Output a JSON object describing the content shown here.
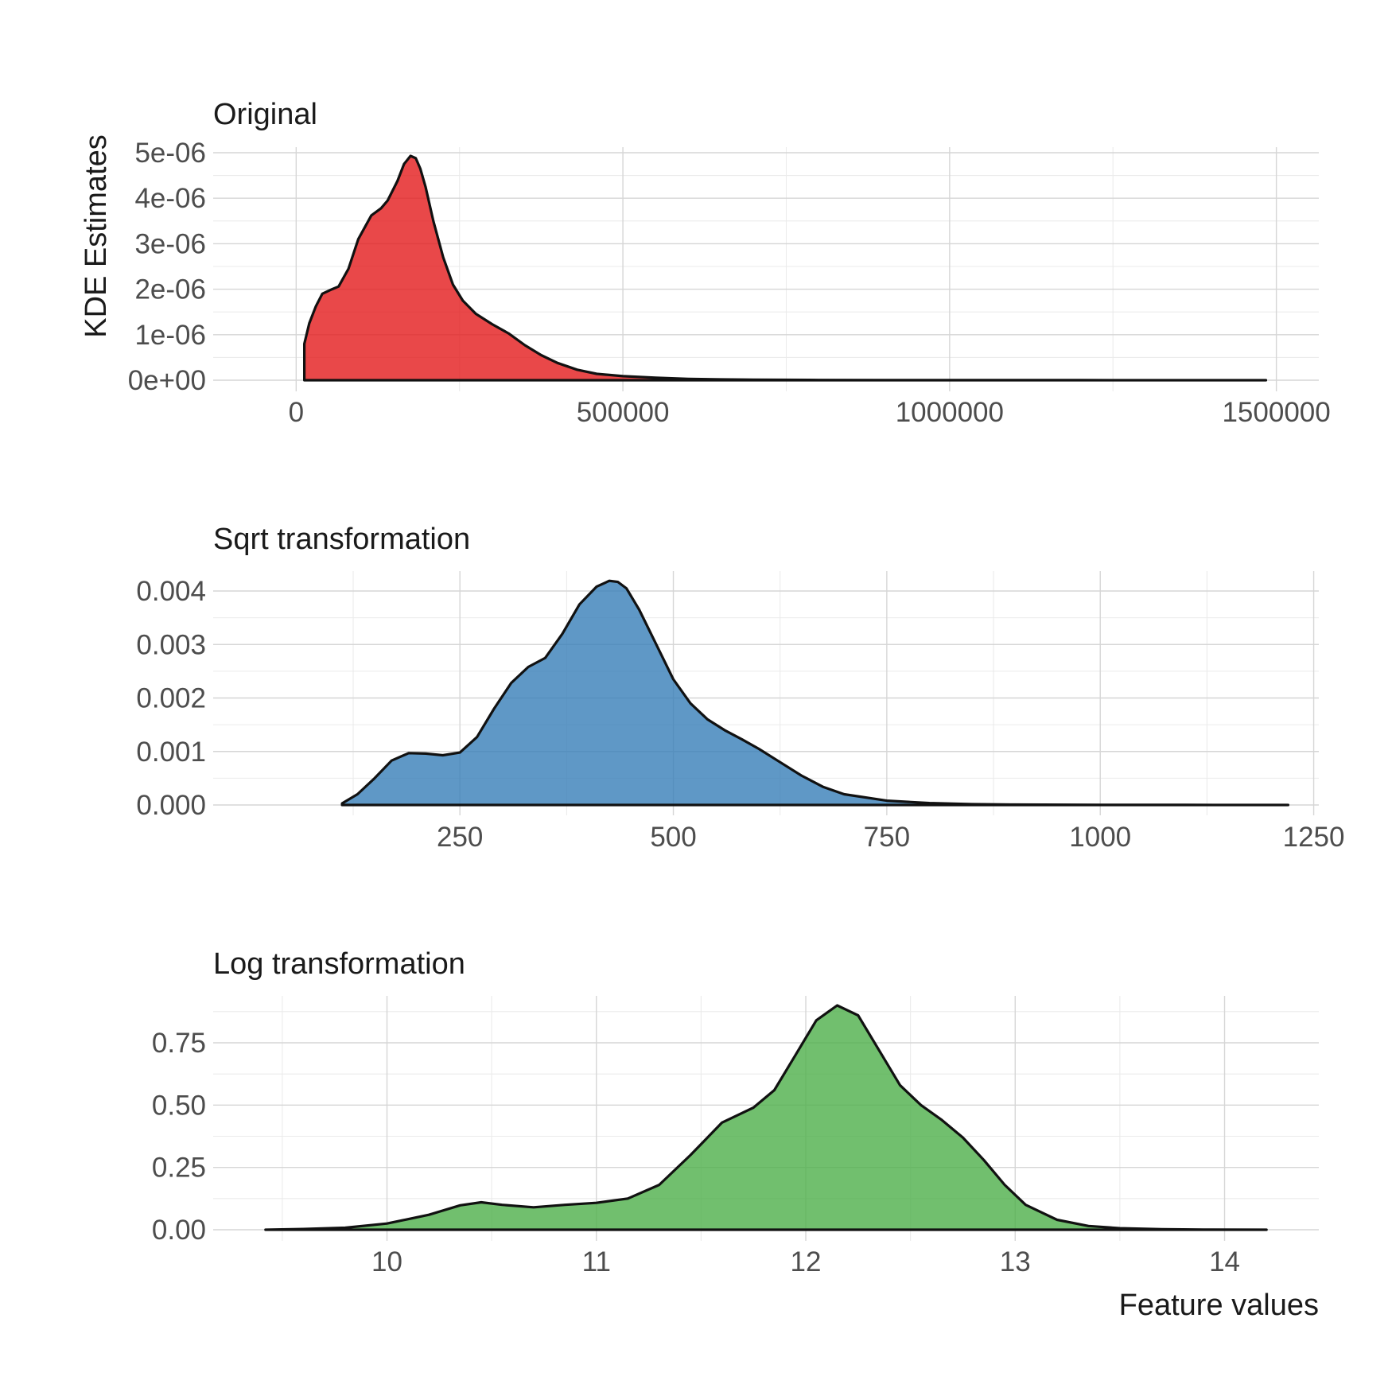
{
  "colors": {
    "original": "#e41a1c",
    "sqrt": "#377eb8",
    "log": "#4daf4a",
    "outline": "#111111"
  },
  "chart_data": [
    {
      "type": "area",
      "title": "Original",
      "ylabel": "KDE Estimates",
      "xlabel": "",
      "xlim": [
        -127000,
        1565000
      ],
      "ylim": [
        0,
        5e-06
      ],
      "xticks": [
        0,
        500000,
        1000000,
        1500000
      ],
      "xtick_labels": [
        "0",
        "500000",
        "1000000",
        "1500000"
      ],
      "xminor": [
        250000,
        750000,
        1250000
      ],
      "yticks": [
        0,
        1e-06,
        2e-06,
        3e-06,
        4e-06,
        5e-06
      ],
      "ytick_labels": [
        "0e+00",
        "1e-06",
        "2e-06",
        "3e-06",
        "4e-06",
        "5e-06"
      ],
      "series": [
        {
          "fill": "original",
          "x": [
            12500,
            12500,
            20000,
            30000,
            40000,
            55000,
            65000,
            80000,
            95000,
            115000,
            130000,
            140000,
            155000,
            165000,
            175000,
            183000,
            190000,
            198000,
            210000,
            225000,
            240000,
            255000,
            275000,
            300000,
            325000,
            350000,
            375000,
            400000,
            430000,
            460000,
            500000,
            550000,
            600000,
            650000,
            700000,
            800000,
            900000,
            1000000,
            1200000,
            1484000
          ],
          "y": [
            0,
            8e-07,
            1.25e-06,
            1.62e-06,
            1.9e-06,
            2e-06,
            2.06e-06,
            2.45e-06,
            3.1e-06,
            3.62e-06,
            3.78e-06,
            3.95e-06,
            4.38e-06,
            4.75e-06,
            4.93e-06,
            4.88e-06,
            4.65e-06,
            4.25e-06,
            3.5e-06,
            2.7e-06,
            2.1e-06,
            1.75e-06,
            1.46e-06,
            1.23e-06,
            1.03e-06,
            7.7e-07,
            5.5e-07,
            3.8e-07,
            2.3e-07,
            1.4e-07,
            9e-08,
            5.5e-08,
            3e-08,
            1.8e-08,
            1.2e-08,
            6e-09,
            3e-09,
            2e-09,
            1e-09,
            0.0
          ]
        }
      ]
    },
    {
      "type": "area",
      "title": "Sqrt transformation",
      "ylabel": "",
      "xlabel": "",
      "xlim": [
        -39,
        1256
      ],
      "ylim": [
        0,
        0.0042
      ],
      "xticks": [
        250,
        500,
        750,
        1000,
        1250
      ],
      "xtick_labels": [
        "250",
        "500",
        "750",
        "1000",
        "1250"
      ],
      "xminor": [
        125,
        375,
        625,
        875,
        1125
      ],
      "yticks": [
        0,
        0.001,
        0.002,
        0.003,
        0.004
      ],
      "ytick_labels": [
        "0.000",
        "0.001",
        "0.002",
        "0.003",
        "0.004"
      ],
      "series": [
        {
          "fill": "sqrt",
          "x": [
            112,
            130,
            150,
            170,
            190,
            210,
            230,
            250,
            270,
            290,
            310,
            330,
            350,
            370,
            390,
            410,
            425,
            435,
            445,
            460,
            480,
            500,
            520,
            540,
            560,
            580,
            600,
            625,
            650,
            675,
            700,
            750,
            800,
            850,
            900,
            1000,
            1100,
            1220
          ],
          "y": [
            3e-05,
            0.0002,
            0.0005,
            0.00083,
            0.00097,
            0.00096,
            0.00093,
            0.00098,
            0.00127,
            0.0018,
            0.00228,
            0.00258,
            0.00275,
            0.0032,
            0.00375,
            0.00408,
            0.00419,
            0.00417,
            0.00405,
            0.00365,
            0.003,
            0.00235,
            0.0019,
            0.0016,
            0.0014,
            0.00123,
            0.00105,
            0.0008,
            0.00055,
            0.00034,
            0.0002,
            8e-05,
            3.5e-05,
            1.5e-05,
            7e-06,
            2e-06,
            8e-07,
            0.0
          ]
        }
      ]
    },
    {
      "type": "area",
      "title": "Log transformation",
      "ylabel": "",
      "xlabel": "Feature values",
      "xlim": [
        9.17,
        14.45
      ],
      "ylim": [
        0,
        0.9
      ],
      "xticks": [
        10,
        11,
        12,
        13,
        14
      ],
      "xtick_labels": [
        "10",
        "11",
        "12",
        "13",
        "14"
      ],
      "xminor": [
        9.5,
        10.5,
        11.5,
        12.5,
        13.5
      ],
      "yticks": [
        0,
        0.25,
        0.5,
        0.75
      ],
      "ytick_labels": [
        "0.00",
        "0.25",
        "0.50",
        "0.75"
      ],
      "series": [
        {
          "fill": "log",
          "x": [
            9.42,
            9.6,
            9.8,
            10.0,
            10.2,
            10.35,
            10.45,
            10.55,
            10.7,
            10.85,
            11.0,
            11.15,
            11.3,
            11.45,
            11.6,
            11.75,
            11.85,
            11.95,
            12.05,
            12.15,
            12.25,
            12.35,
            12.45,
            12.55,
            12.65,
            12.75,
            12.85,
            12.95,
            13.05,
            13.2,
            13.35,
            13.5,
            13.7,
            13.9,
            14.2
          ],
          "y": [
            0.0,
            0.003,
            0.008,
            0.025,
            0.06,
            0.098,
            0.11,
            0.1,
            0.09,
            0.1,
            0.108,
            0.125,
            0.18,
            0.3,
            0.43,
            0.49,
            0.56,
            0.7,
            0.84,
            0.9,
            0.86,
            0.72,
            0.58,
            0.5,
            0.44,
            0.37,
            0.28,
            0.18,
            0.1,
            0.04,
            0.015,
            0.006,
            0.002,
            0.0005,
            0.0
          ]
        }
      ]
    }
  ]
}
